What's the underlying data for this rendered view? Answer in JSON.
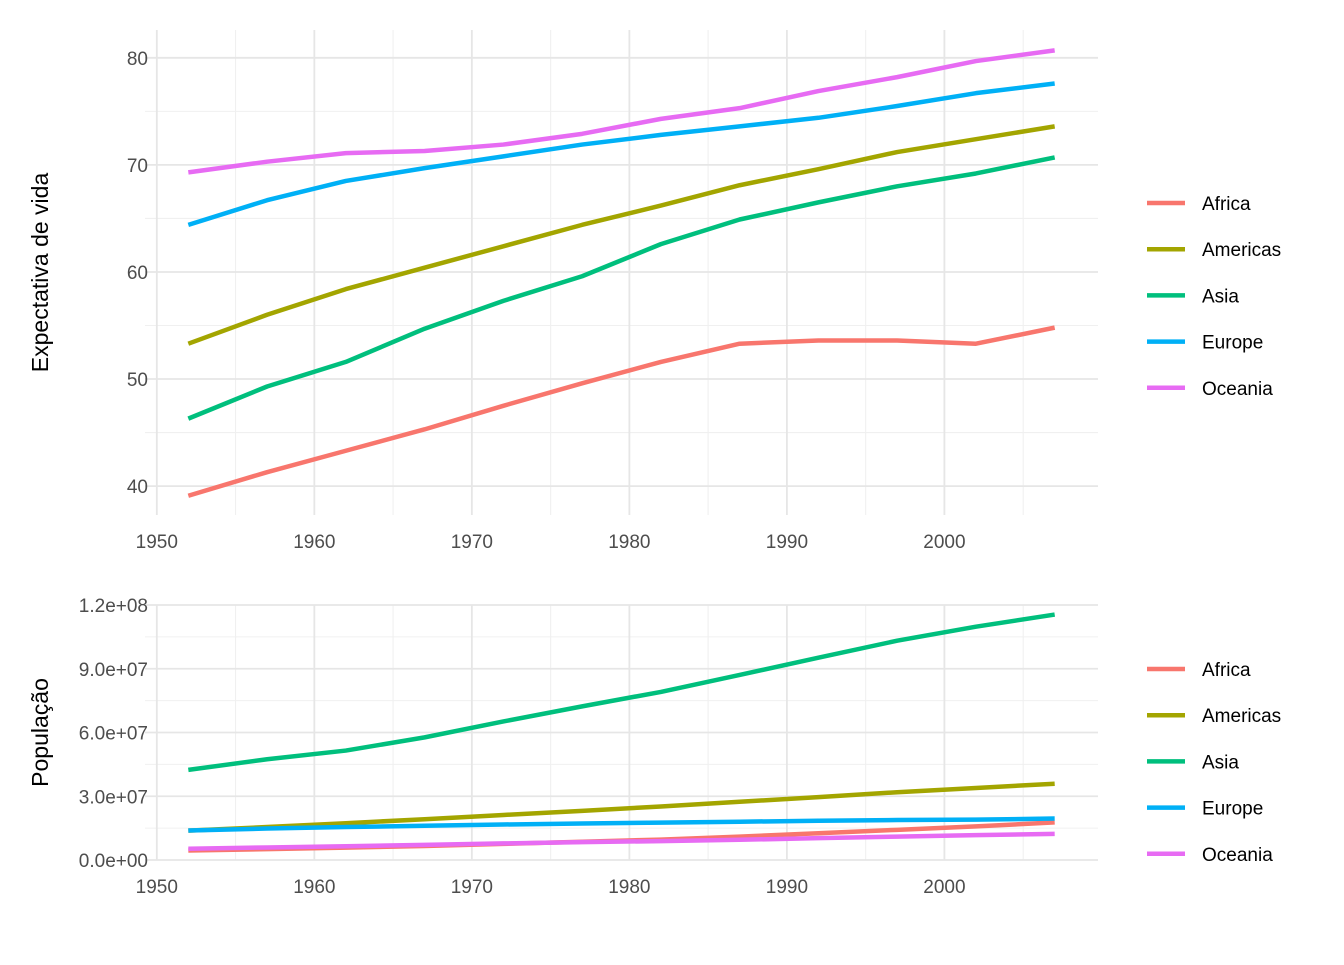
{
  "colors": {
    "Africa": "#F8766D",
    "Americas": "#A3A500",
    "Asia": "#00BF7D",
    "Europe": "#00B0F6",
    "Oceania": "#E76BF3"
  },
  "chart_data": [
    {
      "type": "line",
      "title": "",
      "xlabel": "",
      "ylabel": "Expectativa de vida",
      "xlim": [
        1949.25,
        2009.75
      ],
      "ylim": [
        37.3,
        82.6
      ],
      "x_ticks": [
        1950,
        1960,
        1970,
        1980,
        1990,
        2000
      ],
      "x_tick_labels": [
        "1950",
        "1960",
        "1970",
        "1980",
        "1990",
        "2000"
      ],
      "y_ticks": [
        40,
        50,
        60,
        70,
        80
      ],
      "y_tick_labels": [
        "40",
        "50",
        "60",
        "70",
        "80"
      ],
      "x": [
        1952,
        1957,
        1962,
        1967,
        1972,
        1977,
        1982,
        1987,
        1992,
        1997,
        2002,
        2007
      ],
      "series": [
        {
          "name": "Africa",
          "values": [
            39.1,
            41.3,
            43.3,
            45.3,
            47.5,
            49.6,
            51.6,
            53.3,
            53.6,
            53.6,
            53.3,
            54.8
          ]
        },
        {
          "name": "Americas",
          "values": [
            53.3,
            56.0,
            58.4,
            60.4,
            62.4,
            64.4,
            66.2,
            68.1,
            69.6,
            71.2,
            72.4,
            73.6
          ]
        },
        {
          "name": "Asia",
          "values": [
            46.3,
            49.3,
            51.6,
            54.7,
            57.3,
            59.6,
            62.6,
            64.9,
            66.5,
            68.0,
            69.2,
            70.7
          ]
        },
        {
          "name": "Europe",
          "values": [
            64.4,
            66.7,
            68.5,
            69.7,
            70.8,
            71.9,
            72.8,
            73.6,
            74.4,
            75.5,
            76.7,
            77.6
          ]
        },
        {
          "name": "Oceania",
          "values": [
            69.3,
            70.3,
            71.1,
            71.3,
            71.9,
            72.9,
            74.3,
            75.3,
            76.9,
            78.2,
            79.7,
            80.7
          ]
        }
      ],
      "legend": {
        "position": "right",
        "entries": [
          "Africa",
          "Americas",
          "Asia",
          "Europe",
          "Oceania"
        ]
      }
    },
    {
      "type": "line",
      "title": "",
      "xlabel": "",
      "ylabel": "População",
      "xlim": [
        1949.25,
        2009.75
      ],
      "ylim": [
        0,
        120000000
      ],
      "x_ticks": [
        1950,
        1960,
        1970,
        1980,
        1990,
        2000
      ],
      "x_tick_labels": [
        "1950",
        "1960",
        "1970",
        "1980",
        "1990",
        "2000"
      ],
      "y_ticks": [
        0,
        30000000,
        60000000,
        90000000,
        120000000
      ],
      "y_tick_labels": [
        "0.0e+00",
        "3.0e+07",
        "6.0e+07",
        "9.0e+07",
        "1.2e+08"
      ],
      "x": [
        1952,
        1957,
        1962,
        1967,
        1972,
        1977,
        1982,
        1987,
        1992,
        1997,
        2002,
        2007
      ],
      "series": [
        {
          "name": "Africa",
          "values": [
            4500000,
            5100000,
            5800000,
            6600000,
            7600000,
            8600000,
            9600000,
            11000000,
            12600000,
            14200000,
            15800000,
            17700000
          ]
        },
        {
          "name": "Americas",
          "values": [
            13800000,
            15500000,
            17300000,
            19200000,
            21200000,
            23100000,
            25200000,
            27400000,
            29600000,
            31900000,
            33900000,
            35900000
          ]
        },
        {
          "name": "Asia",
          "values": [
            42400000,
            47400000,
            51500000,
            57700000,
            65200000,
            72300000,
            79100000,
            87100000,
            95200000,
            103200000,
            109800000,
            115500000
          ]
        },
        {
          "name": "Europe",
          "values": [
            13900000,
            14800000,
            15500000,
            16100000,
            16700000,
            17200000,
            17600000,
            18000000,
            18500000,
            18800000,
            19000000,
            19500000
          ]
        },
        {
          "name": "Oceania",
          "values": [
            5300000,
            5900000,
            6500000,
            7100000,
            7800000,
            8400000,
            8900000,
            9500000,
            10300000,
            11000000,
            11700000,
            12300000
          ]
        }
      ],
      "legend": {
        "position": "right",
        "entries": [
          "Africa",
          "Americas",
          "Asia",
          "Europe",
          "Oceania"
        ]
      }
    }
  ]
}
